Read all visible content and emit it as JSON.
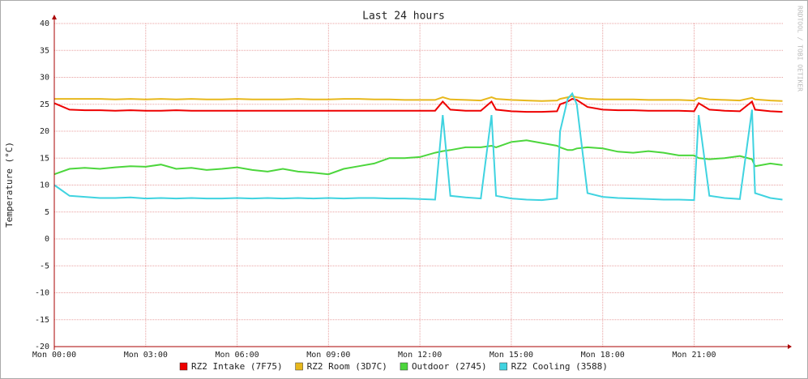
{
  "chart_data": {
    "type": "line",
    "title": "Last 24 hours",
    "y_label": "Temperature (°C)",
    "watermark": "RRDTOOL / TOBI OETIKER",
    "x": [
      0,
      0.5,
      1,
      1.5,
      2,
      2.5,
      3,
      3.5,
      4,
      4.5,
      5,
      5.5,
      6,
      6.5,
      7,
      7.5,
      8,
      8.5,
      9,
      9.5,
      10,
      10.5,
      11,
      11.5,
      12,
      12.5,
      12.75,
      13,
      13.5,
      14,
      14.35,
      14.5,
      15,
      15.5,
      16,
      16.5,
      16.6,
      16.85,
      17,
      17.15,
      17.5,
      18,
      18.5,
      19,
      19.5,
      20,
      20.5,
      21,
      21.15,
      21.5,
      22,
      22.5,
      22.9,
      23,
      23.5,
      23.9
    ],
    "xlim": [
      0,
      23.94
    ],
    "xticks": [
      {
        "value": 0,
        "label": "Mon 00:00"
      },
      {
        "value": 3,
        "label": "Mon 03:00"
      },
      {
        "value": 6,
        "label": "Mon 06:00"
      },
      {
        "value": 9,
        "label": "Mon 09:00"
      },
      {
        "value": 12,
        "label": "Mon 12:00"
      },
      {
        "value": 15,
        "label": "Mon 15:00"
      },
      {
        "value": 18,
        "label": "Mon 18:00"
      },
      {
        "value": 21,
        "label": "Mon 21:00"
      }
    ],
    "ylim": [
      -20,
      40
    ],
    "yticks": [
      -20,
      -15,
      -10,
      -5,
      0,
      5,
      10,
      15,
      20,
      25,
      30,
      35,
      40
    ],
    "grid": true,
    "series": [
      {
        "name": "RZ2 Intake (7F75)",
        "color": "#ee0000",
        "values": [
          25.2,
          24,
          23.9,
          23.9,
          23.8,
          23.9,
          23.8,
          23.8,
          23.9,
          23.8,
          23.8,
          23.8,
          23.8,
          23.8,
          23.8,
          23.8,
          23.8,
          23.8,
          23.8,
          23.8,
          23.8,
          23.8,
          23.8,
          23.8,
          23.8,
          23.8,
          25.5,
          24,
          23.8,
          23.8,
          25.5,
          24,
          23.7,
          23.6,
          23.6,
          23.7,
          25,
          25.5,
          26,
          25.8,
          24.5,
          24,
          23.9,
          23.9,
          23.8,
          23.8,
          23.8,
          23.7,
          25.2,
          24,
          23.8,
          23.7,
          25.5,
          24,
          23.7,
          23.6
        ]
      },
      {
        "name": "RZ2 Room (3D7C)",
        "color": "#e8b81c",
        "values": [
          26,
          26,
          26,
          26,
          25.9,
          26,
          25.9,
          26,
          25.9,
          26,
          25.9,
          25.9,
          26,
          25.9,
          25.9,
          25.9,
          26,
          25.9,
          25.9,
          26,
          26,
          25.9,
          25.9,
          25.8,
          25.8,
          25.8,
          26.3,
          25.9,
          25.8,
          25.7,
          26.3,
          26,
          25.8,
          25.7,
          25.6,
          25.7,
          26,
          26.3,
          26.5,
          26.3,
          26,
          25.9,
          25.9,
          25.9,
          25.8,
          25.8,
          25.8,
          25.7,
          26.2,
          25.9,
          25.8,
          25.7,
          26.2,
          25.9,
          25.7,
          25.6
        ]
      },
      {
        "name": "Outdoor (2745)",
        "color": "#4cd63c",
        "values": [
          12,
          13,
          13.2,
          13,
          13.3,
          13.5,
          13.4,
          13.8,
          13,
          13.2,
          12.8,
          13,
          13.3,
          12.8,
          12.5,
          13,
          12.5,
          12.3,
          12,
          13,
          13.5,
          14,
          15,
          15,
          15.2,
          16,
          16.3,
          16.5,
          17,
          17,
          17.3,
          17,
          18,
          18.3,
          17.8,
          17.3,
          17,
          16.5,
          16.5,
          16.8,
          17,
          16.8,
          16.2,
          16,
          16.3,
          16,
          15.5,
          15.5,
          15,
          14.8,
          15,
          15.4,
          14.8,
          13.5,
          14,
          13.7
        ]
      },
      {
        "name": "RZ2 Cooling (3588)",
        "color": "#3fd3e0",
        "values": [
          10,
          8,
          7.8,
          7.6,
          7.6,
          7.7,
          7.5,
          7.6,
          7.5,
          7.6,
          7.5,
          7.5,
          7.6,
          7.5,
          7.6,
          7.5,
          7.6,
          7.5,
          7.6,
          7.5,
          7.6,
          7.6,
          7.5,
          7.5,
          7.4,
          7.3,
          23,
          8,
          7.7,
          7.5,
          23,
          8,
          7.5,
          7.3,
          7.2,
          7.5,
          20,
          26,
          27,
          25,
          8.5,
          7.8,
          7.6,
          7.5,
          7.4,
          7.3,
          7.3,
          7.2,
          23,
          8,
          7.6,
          7.4,
          24,
          8.5,
          7.6,
          7.3
        ]
      }
    ]
  }
}
